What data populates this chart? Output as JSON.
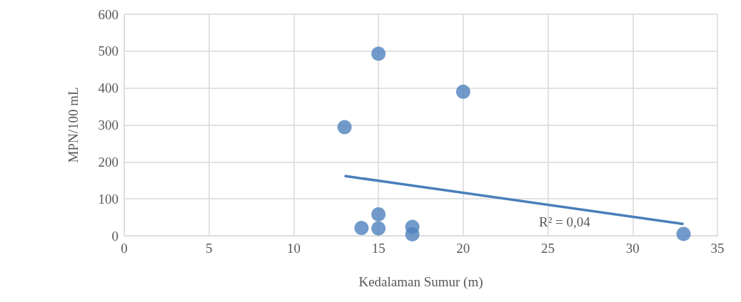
{
  "chart_data": {
    "type": "scatter",
    "xlabel": "Kedalaman Sumur (m)",
    "ylabel": "MPN/100 mL",
    "xlim": [
      0,
      35
    ],
    "xticks": [
      0,
      5,
      10,
      15,
      20,
      25,
      30,
      35
    ],
    "ylim": [
      0,
      600
    ],
    "yticks": [
      0,
      100,
      200,
      300,
      400,
      500,
      600
    ],
    "grid": true,
    "marker": "circle",
    "series": [
      {
        "color": "#4f81bd",
        "x": [
          15,
          20,
          13,
          15,
          14,
          15,
          17,
          17,
          33
        ],
        "values": [
          493,
          390,
          294,
          58,
          21,
          20,
          24,
          4,
          5
        ]
      },
      {
        "type": "line",
        "color": "#4a7ebb",
        "x": [
          13,
          33
        ],
        "values": [
          162,
          32
        ],
        "line_style": "solid",
        "marker": "none"
      }
    ],
    "annotations": [
      "R² = 0,04"
    ]
  }
}
